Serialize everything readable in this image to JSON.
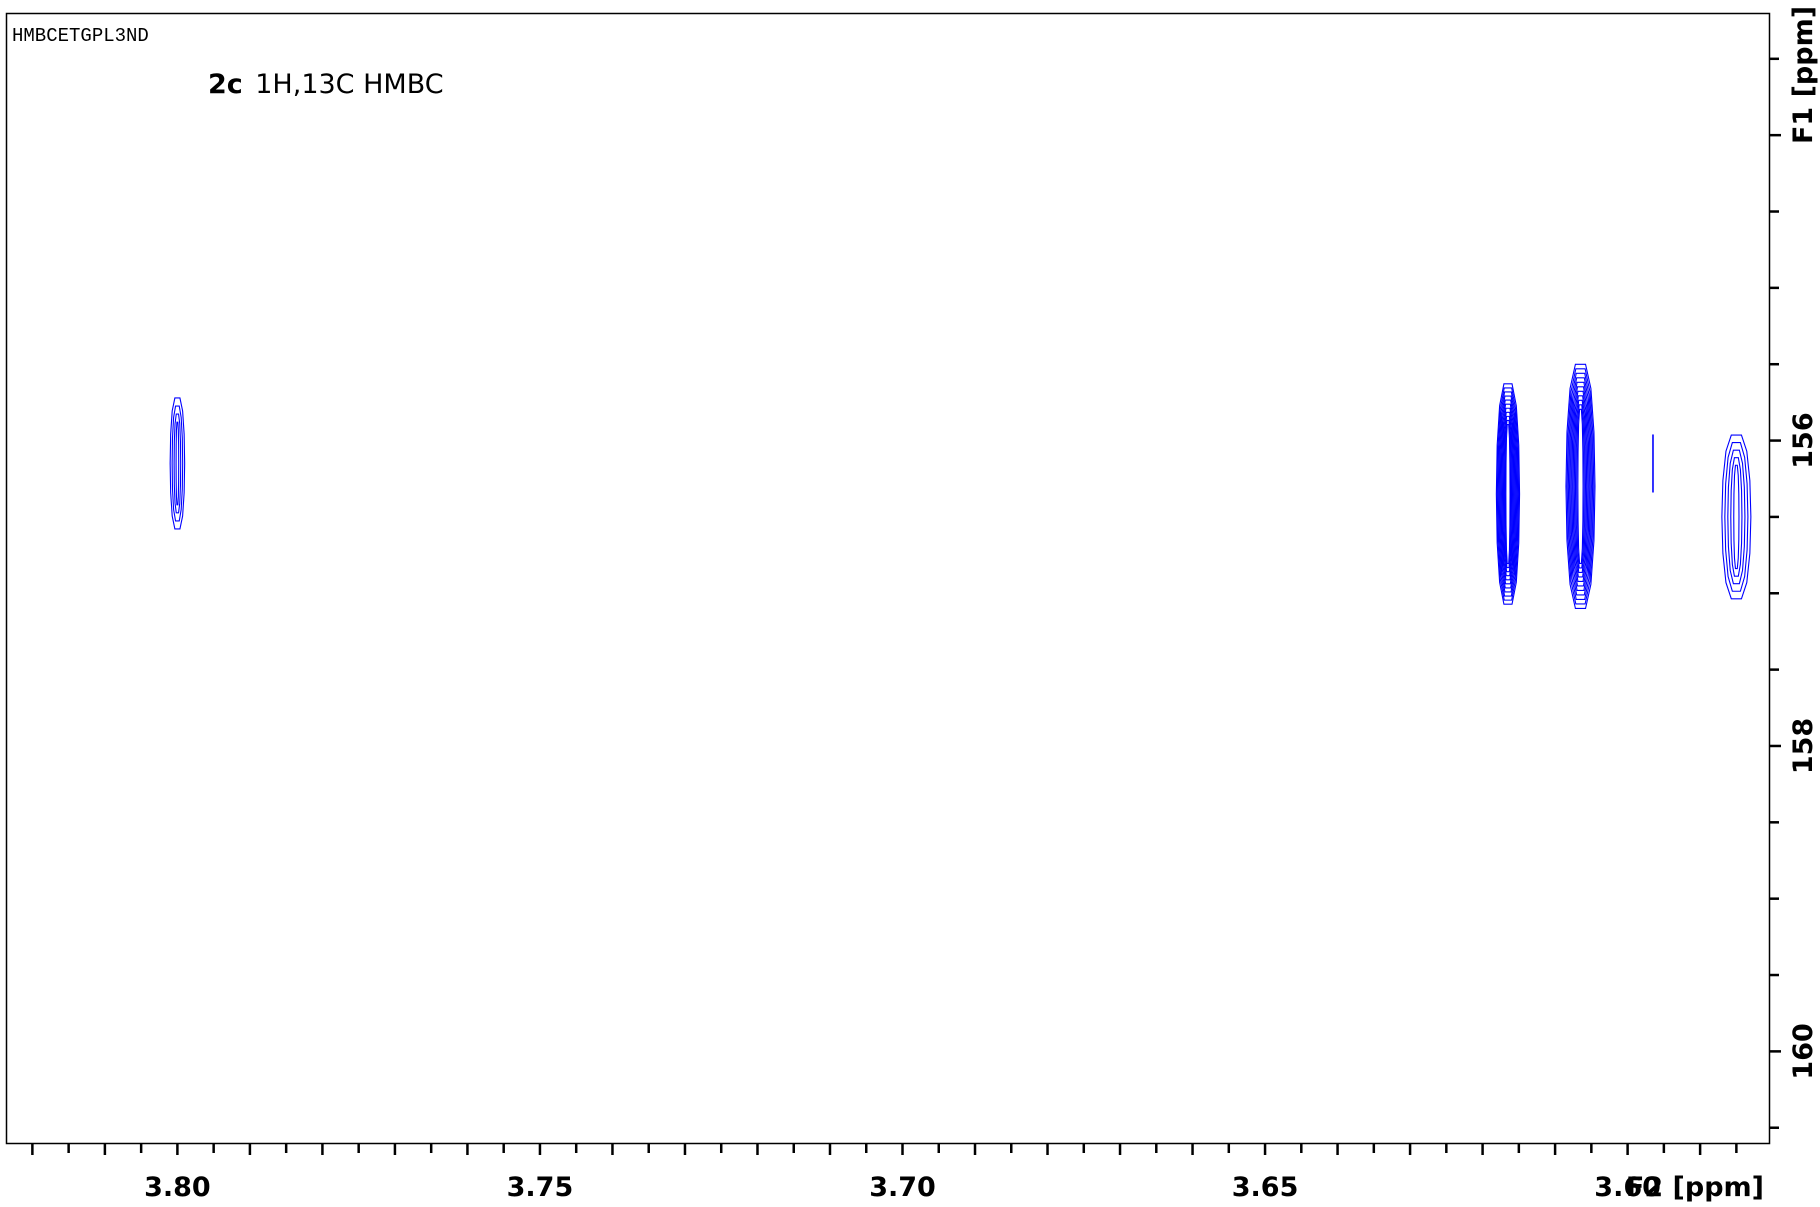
{
  "pulse_program": "HMBCETGPL3ND",
  "title": {
    "compound": "2c",
    "experiment": "1H,13C HMBC"
  },
  "chart_data": {
    "type": "contour",
    "x_axis": {
      "label": "F2 [ppm]",
      "range": [
        3.8235,
        3.5805
      ],
      "reversed": true,
      "major_ticks": [
        3.8,
        3.75,
        3.7,
        3.65,
        3.6
      ],
      "tick_labels": [
        "3.80",
        "3.75",
        "3.70",
        "3.65",
        "3.60"
      ],
      "minor_step": 0.005
    },
    "y_axis": {
      "label": "F1 [ppm]",
      "range": [
        153.2,
        160.6
      ],
      "reversed": true,
      "position": "right",
      "major_ticks": [
        156,
        158,
        160
      ],
      "tick_labels": [
        "156",
        "158",
        "160"
      ],
      "minor_step": 0.5
    },
    "contour_color": "#0000ff",
    "peaks": [
      {
        "x": 3.8,
        "y": 156.15,
        "x_half_width": 0.001,
        "y_half_width": 0.44,
        "levels": 4
      },
      {
        "x": 3.6165,
        "y": 156.35,
        "x_half_width": 0.0016,
        "y_half_width": 0.74,
        "levels": 11
      },
      {
        "x": 3.6065,
        "y": 156.3,
        "x_half_width": 0.002,
        "y_half_width": 0.82,
        "levels": 11
      },
      {
        "x": 3.5965,
        "y": 156.15,
        "x_half_width": 1e-05,
        "y_half_width": 0.19,
        "levels": 1
      },
      {
        "x": 3.585,
        "y": 156.5,
        "x_half_width": 0.002,
        "y_half_width": 0.55,
        "levels": 5
      }
    ]
  }
}
